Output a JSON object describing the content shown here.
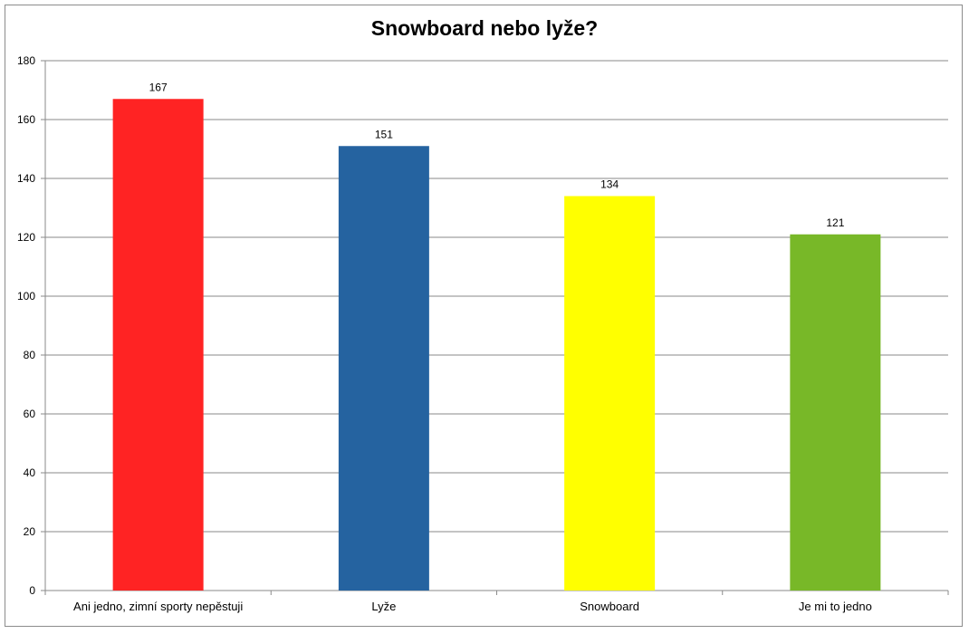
{
  "chart_data": {
    "type": "bar",
    "title": "Snowboard nebo lyže?",
    "xlabel": "",
    "ylabel": "",
    "categories": [
      "Ani jedno, zimní sporty nepěstuji",
      "Lyže",
      "Snowboard",
      "Je mi to jedno"
    ],
    "values": [
      167,
      151,
      134,
      121
    ],
    "colors": [
      "#ff2323",
      "#2563a0",
      "#ffff00",
      "#78b828"
    ],
    "ylim": [
      0,
      180
    ],
    "yticks": [
      0,
      20,
      40,
      60,
      80,
      100,
      120,
      140,
      160,
      180
    ],
    "grid": true,
    "legend": "none",
    "data_labels": true
  }
}
